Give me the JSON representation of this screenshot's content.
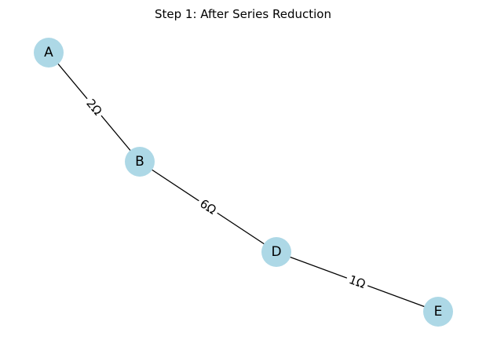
{
  "title": "Step 1: After Series Reduction",
  "colors": {
    "node_fill": "#ADD8E6",
    "edge_stroke": "#000000",
    "background": "#FFFFFF"
  },
  "nodes": [
    {
      "id": "A",
      "label": "A"
    },
    {
      "id": "B",
      "label": "B"
    },
    {
      "id": "D",
      "label": "D"
    },
    {
      "id": "E",
      "label": "E"
    }
  ],
  "edges": [
    {
      "from": "A",
      "to": "B",
      "label": "2Ω"
    },
    {
      "from": "B",
      "to": "D",
      "label": "6Ω"
    },
    {
      "from": "D",
      "to": "E",
      "label": "1Ω"
    }
  ]
}
